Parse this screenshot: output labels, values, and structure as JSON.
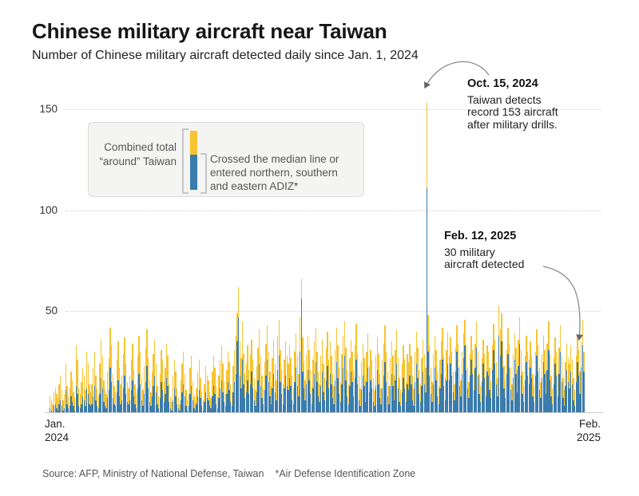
{
  "header": {
    "title": "Chinese military aircraft near Taiwan",
    "subtitle": "Number of Chinese military aircraft detected daily since Jan. 1, 2024"
  },
  "legend": {
    "combined_label_lines": [
      "Combined total",
      "“around” Taiwan"
    ],
    "crossed_label_lines": [
      "Crossed the median line or",
      "entered northern, southern",
      "and eastern ADIZ*"
    ]
  },
  "source": {
    "label": "Source: AFP, Ministry of National Defense, Taiwan",
    "note": "*Air Defense Identification Zone"
  },
  "chart_data": {
    "type": "bar",
    "stacked": true,
    "title": "Chinese military aircraft near Taiwan",
    "start_date": "2024-01-01",
    "end_date": "2025-02-12",
    "yticks": [
      50,
      100,
      150
    ],
    "ylim": [
      0,
      150
    ],
    "grid": "dotted-horizontal",
    "x_axis": {
      "start_lines": [
        "Jan.",
        "2024"
      ],
      "end_lines": [
        "Feb.",
        "2025"
      ]
    },
    "series": [
      {
        "name": "Combined total “around” Taiwan",
        "color": "#F7C331"
      },
      {
        "name": "Crossed the median line or entered northern, southern and eastern ADIZ*",
        "color": "#3A7CAD"
      }
    ],
    "annotations": [
      {
        "heading": "Oct. 15, 2024",
        "lines": [
          "Taiwan detects",
          "record 153 aircraft",
          "after military drills."
        ],
        "value": 153
      },
      {
        "heading": "Feb. 12, 2025",
        "lines": [
          "30 military",
          "aircraft detected"
        ],
        "value": 30
      }
    ],
    "total": [
      8,
      6,
      4,
      10,
      12,
      9,
      7,
      14,
      18,
      11,
      6,
      9,
      24,
      13,
      8,
      12,
      20,
      16,
      10,
      7,
      33,
      26,
      12,
      9,
      15,
      22,
      18,
      11,
      30,
      24,
      14,
      10,
      14,
      22,
      30,
      18,
      12,
      8,
      24,
      36,
      28,
      16,
      11,
      9,
      20,
      27,
      42,
      33,
      19,
      13,
      10,
      26,
      35,
      22,
      14,
      18,
      29,
      37,
      24,
      15,
      12,
      18,
      26,
      34,
      21,
      14,
      9,
      28,
      38,
      30,
      17,
      11,
      23,
      32,
      41,
      27,
      16,
      10,
      20,
      29,
      36,
      24,
      13,
      8,
      19,
      31,
      26,
      15,
      22,
      34,
      28,
      14,
      8,
      5,
      18,
      26,
      20,
      12,
      7,
      4,
      16,
      24,
      30,
      19,
      11,
      6,
      9,
      22,
      28,
      15,
      8,
      5,
      12,
      20,
      26,
      17,
      10,
      6,
      14,
      23,
      18,
      16,
      10,
      7,
      20,
      28,
      22,
      13,
      8,
      18,
      26,
      33,
      24,
      15,
      9,
      21,
      30,
      25,
      14,
      10,
      23,
      31,
      38,
      49,
      62,
      35,
      27,
      45,
      29,
      19,
      24,
      33,
      21,
      29,
      36,
      26,
      17,
      11,
      23,
      32,
      41,
      28,
      18,
      12,
      25,
      34,
      43,
      30,
      20,
      13,
      27,
      36,
      24,
      16,
      38,
      46,
      31,
      21,
      14,
      26,
      35,
      28,
      24,
      33,
      27,
      18,
      12,
      30,
      39,
      28,
      19,
      47,
      66,
      37,
      25,
      16,
      29,
      38,
      31,
      21,
      13,
      26,
      35,
      42,
      30,
      20,
      14,
      28,
      36,
      24,
      17,
      32,
      40,
      26,
      35,
      28,
      19,
      13,
      31,
      42,
      33,
      22,
      15,
      29,
      38,
      45,
      32,
      21,
      14,
      27,
      36,
      30,
      20,
      33,
      44,
      29,
      18,
      12,
      25,
      34,
      27,
      16,
      30,
      39,
      23,
      31,
      26,
      17,
      11,
      28,
      37,
      29,
      19,
      12,
      26,
      34,
      43,
      30,
      20,
      13,
      27,
      35,
      28,
      18,
      31,
      41,
      27,
      17,
      11,
      24,
      33,
      26,
      15,
      29,
      25,
      34,
      28,
      18,
      12,
      30,
      40,
      32,
      21,
      14,
      27,
      36,
      29,
      22,
      153,
      48,
      33,
      22,
      15,
      29,
      38,
      31,
      20,
      13,
      26,
      35,
      42,
      28,
      17,
      31,
      40,
      28,
      37,
      30,
      20,
      14,
      32,
      43,
      34,
      23,
      16,
      30,
      39,
      46,
      33,
      22,
      15,
      29,
      38,
      31,
      21,
      34,
      45,
      30,
      19,
      13,
      27,
      36,
      29,
      18,
      33,
      30,
      22,
      15,
      33,
      44,
      36,
      25,
      17,
      53,
      41,
      49,
      35,
      23,
      16,
      31,
      42,
      34,
      22,
      14,
      29,
      39,
      32,
      21,
      36,
      47,
      31,
      20,
      13,
      28,
      38,
      30,
      26,
      35,
      28,
      19,
      13,
      30,
      41,
      33,
      22,
      15,
      29,
      38,
      31,
      20,
      34,
      45,
      29,
      18,
      12,
      27,
      37,
      30,
      19,
      32,
      43,
      28,
      17,
      11,
      25,
      34,
      27,
      24,
      33,
      26,
      17,
      11,
      28,
      38,
      31,
      20,
      35,
      46,
      30
    ],
    "crossed": [
      2,
      1,
      0,
      3,
      4,
      2,
      1,
      4,
      6,
      3,
      1,
      2,
      11,
      4,
      2,
      3,
      8,
      5,
      3,
      1,
      13,
      9,
      3,
      2,
      4,
      8,
      6,
      3,
      12,
      9,
      4,
      3,
      4,
      8,
      13,
      6,
      3,
      2,
      9,
      17,
      12,
      5,
      3,
      2,
      7,
      11,
      22,
      15,
      7,
      4,
      3,
      10,
      16,
      8,
      4,
      6,
      12,
      18,
      9,
      5,
      4,
      6,
      11,
      16,
      8,
      4,
      2,
      12,
      19,
      14,
      6,
      3,
      9,
      15,
      23,
      12,
      5,
      3,
      8,
      13,
      18,
      10,
      4,
      2,
      7,
      15,
      11,
      5,
      9,
      17,
      13,
      5,
      2,
      1,
      6,
      12,
      8,
      4,
      2,
      1,
      6,
      10,
      14,
      8,
      3,
      1,
      3,
      9,
      13,
      6,
      2,
      1,
      4,
      8,
      11,
      7,
      3,
      1,
      5,
      10,
      7,
      6,
      3,
      2,
      8,
      13,
      9,
      4,
      2,
      7,
      12,
      16,
      10,
      5,
      3,
      9,
      15,
      11,
      5,
      3,
      10,
      15,
      19,
      35,
      47,
      18,
      12,
      26,
      14,
      7,
      10,
      16,
      9,
      14,
      20,
      12,
      6,
      3,
      10,
      16,
      24,
      13,
      7,
      4,
      11,
      18,
      26,
      15,
      8,
      4,
      12,
      19,
      10,
      6,
      21,
      28,
      15,
      9,
      4,
      12,
      18,
      13,
      11,
      17,
      13,
      6,
      4,
      15,
      22,
      13,
      8,
      30,
      56,
      20,
      12,
      6,
      14,
      21,
      16,
      9,
      4,
      12,
      19,
      25,
      15,
      8,
      5,
      13,
      20,
      10,
      6,
      16,
      23,
      12,
      19,
      14,
      7,
      4,
      16,
      25,
      17,
      9,
      5,
      14,
      22,
      28,
      16,
      8,
      4,
      13,
      20,
      15,
      8,
      17,
      26,
      14,
      6,
      3,
      11,
      18,
      13,
      5,
      15,
      22,
      10,
      16,
      12,
      5,
      3,
      13,
      21,
      14,
      7,
      4,
      12,
      18,
      25,
      15,
      8,
      4,
      13,
      19,
      13,
      6,
      16,
      24,
      12,
      5,
      3,
      10,
      17,
      12,
      5,
      14,
      11,
      18,
      14,
      6,
      3,
      15,
      24,
      17,
      9,
      5,
      13,
      20,
      14,
      10,
      111,
      30,
      18,
      9,
      5,
      14,
      22,
      16,
      8,
      4,
      12,
      19,
      26,
      13,
      6,
      16,
      24,
      16,
      24,
      18,
      10,
      6,
      20,
      30,
      22,
      13,
      8,
      19,
      27,
      33,
      21,
      12,
      7,
      18,
      26,
      19,
      11,
      22,
      32,
      18,
      9,
      5,
      15,
      24,
      17,
      8,
      20,
      18,
      11,
      7,
      21,
      31,
      24,
      14,
      8,
      38,
      28,
      35,
      22,
      12,
      7,
      19,
      29,
      22,
      11,
      6,
      17,
      26,
      19,
      10,
      23,
      34,
      18,
      9,
      5,
      16,
      25,
      18,
      14,
      22,
      17,
      8,
      5,
      18,
      28,
      20,
      11,
      7,
      17,
      25,
      19,
      9,
      21,
      31,
      16,
      8,
      4,
      14,
      24,
      18,
      8,
      19,
      30,
      15,
      7,
      3,
      13,
      21,
      15,
      12,
      20,
      14,
      6,
      3,
      15,
      25,
      18,
      9,
      22,
      33,
      20
    ]
  }
}
